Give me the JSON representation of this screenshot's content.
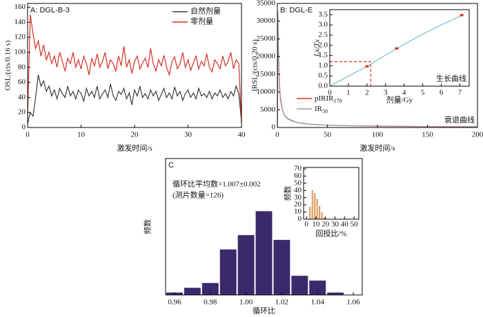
{
  "chart_data": [
    {
      "type": "line",
      "title": "A: DGL-B-3",
      "xlabel": "激发时间/s",
      "ylabel": "OSL/(cts/0.16 s)",
      "xlim": [
        0,
        40
      ],
      "ylim": [
        0,
        165
      ],
      "xticks": [
        0,
        10,
        20,
        30,
        40
      ],
      "yticks": [
        0,
        20,
        40,
        60,
        80,
        100,
        120,
        140,
        160
      ],
      "legend": "upper right",
      "x": [
        0,
        0.5,
        1,
        1.5,
        2,
        2.5,
        3,
        3.5,
        4,
        4.5,
        5,
        5.5,
        6,
        6.5,
        7,
        7.5,
        8,
        8.5,
        9,
        9.5,
        10,
        10.5,
        11,
        11.5,
        12,
        12.5,
        13,
        13.5,
        14,
        14.5,
        15,
        15.5,
        16,
        16.5,
        17,
        17.5,
        18,
        18.5,
        19,
        19.5,
        20,
        20.5,
        21,
        21.5,
        22,
        22.5,
        23,
        23.5,
        24,
        24.5,
        25,
        25.5,
        26,
        26.5,
        27,
        27.5,
        28,
        28.5,
        29,
        29.5,
        30,
        30.5,
        31,
        31.5,
        32,
        32.5,
        33,
        33.5,
        34,
        34.5,
        35,
        35.5,
        36,
        36.5,
        37,
        37.5,
        38,
        38.5,
        39,
        39.5,
        40
      ],
      "series": [
        {
          "name": "自然剂量",
          "color": "#3a3a3a",
          "values": [
            5,
            20,
            15,
            40,
            70,
            55,
            62,
            48,
            55,
            42,
            50,
            38,
            52,
            45,
            40,
            55,
            42,
            48,
            38,
            50,
            45,
            35,
            52,
            42,
            48,
            40,
            55,
            38,
            45,
            50,
            40,
            58,
            42,
            36,
            48,
            44,
            52,
            38,
            46,
            30,
            50,
            42,
            55,
            40,
            45,
            38,
            50,
            42,
            48,
            36,
            44,
            52,
            40,
            46,
            38,
            54,
            42,
            48,
            36,
            45,
            50,
            40,
            46,
            38,
            52,
            42,
            45,
            40,
            48,
            38,
            46,
            42,
            50,
            40,
            45,
            38,
            48,
            42,
            55,
            45,
            8
          ]
        },
        {
          "name": "零剂量",
          "color": "#d62d20",
          "values": [
            15,
            150,
            125,
            105,
            115,
            95,
            110,
            90,
            100,
            85,
            95,
            80,
            100,
            88,
            75,
            92,
            85,
            100,
            80,
            90,
            78,
            95,
            85,
            70,
            92,
            82,
            98,
            80,
            88,
            100,
            78,
            90,
            85,
            75,
            95,
            82,
            108,
            80,
            90,
            72,
            88,
            95,
            78,
            86,
            92,
            80,
            105,
            85,
            75,
            90,
            82,
            96,
            80,
            70,
            88,
            94,
            78,
            85,
            100,
            80,
            90,
            76,
            86,
            95,
            78,
            88,
            82,
            98,
            80,
            74,
            90,
            85,
            78,
            95,
            82,
            88,
            100,
            78,
            90,
            85,
            5
          ]
        }
      ]
    },
    {
      "type": "line",
      "title": "B: DGL-E",
      "xlabel": "激发时间/s",
      "ylabel": "IRSL/(cts/0.20 s)",
      "annotation": "衰退曲线",
      "xlim": [
        0,
        200
      ],
      "ylim": [
        0,
        35000
      ],
      "xticks": [
        0,
        50,
        100,
        150,
        200
      ],
      "yticks": [
        0,
        5000,
        10000,
        15000,
        20000,
        25000,
        30000,
        35000
      ],
      "legend": "lower left",
      "x": [
        0,
        0.5,
        1,
        2,
        3,
        5,
        7,
        10,
        15,
        20,
        30,
        40,
        50,
        70,
        100,
        130,
        160,
        200
      ],
      "series": [
        {
          "name": "pIRIR170",
          "color": "#d62d20",
          "values": [
            0,
            31000,
            22000,
            12000,
            8000,
            5000,
            3500,
            2500,
            1800,
            1400,
            1000,
            800,
            650,
            500,
            380,
            300,
            250,
            200
          ]
        },
        {
          "name": "IR50",
          "color": "#999999",
          "values": [
            0,
            33000,
            24000,
            13000,
            8500,
            5200,
            3600,
            2600,
            1900,
            1400,
            1000,
            800,
            650,
            500,
            400,
            320,
            260,
            210
          ]
        }
      ]
    },
    {
      "type": "scatter",
      "xlabel": "剂量/Gy",
      "ylabel": "Lx/Tx",
      "annotation": "生长曲线",
      "xlim": [
        0,
        7.5
      ],
      "ylim": [
        0,
        3.75
      ],
      "xticks": [
        0,
        1,
        2,
        3,
        4,
        5,
        6,
        7
      ],
      "yticks": [
        {
          "value": 0,
          "label": "0.0"
        },
        0.5,
        {
          "value": 1,
          "label": "1.0"
        },
        1.5,
        {
          "value": 2,
          "label": "2.0"
        },
        2.5,
        {
          "value": 3,
          "label": "3.0"
        },
        3.5
      ],
      "x": [
        2,
        3.6,
        7.1
      ],
      "y": [
        0.97,
        1.85,
        3.48
      ],
      "errors": [
        0.03,
        0.04,
        0.06
      ],
      "color": "#d62d20",
      "fit": {
        "color": "#7cc6d6",
        "x": [
          0,
          1,
          2,
          3,
          4,
          5,
          6,
          7,
          7.2
        ],
        "y": [
          0,
          0.49,
          0.97,
          1.52,
          2.05,
          2.55,
          3.0,
          3.43,
          3.52
        ]
      },
      "marker": {
        "x": 2.2,
        "y": 1.2,
        "color": "#d62d20"
      }
    },
    {
      "type": "histogram",
      "title": "C",
      "xlabel": "循环比",
      "ylabel": "频数",
      "annotations": [
        "循环比平均数=1.007±0.002",
        "(测片数量=126)"
      ],
      "xlim": [
        0.955,
        1.065
      ],
      "ylim": [
        0,
        57
      ],
      "xticks": [
        0.96,
        0.98,
        {
          "value": 1,
          "label": "1.00"
        },
        1.02,
        1.04,
        1.06
      ],
      "bins": [
        0.955,
        0.965,
        0.975,
        0.985,
        0.995,
        1.005,
        1.015,
        1.025,
        1.035,
        1.045,
        1.055,
        1.065
      ],
      "counts": [
        1,
        3,
        5,
        19,
        25,
        35,
        23,
        8,
        6,
        1,
        0
      ],
      "color": "#3b2a6b"
    },
    {
      "type": "histogram",
      "xlabel": "回授比/%",
      "ylabel": "频数",
      "xlim": [
        -3,
        55
      ],
      "ylim": [
        0,
        72
      ],
      "xticks": [
        0,
        10,
        20,
        30,
        40,
        50
      ],
      "yticks": [
        0,
        10,
        20,
        30,
        40,
        50,
        60,
        70
      ],
      "bins": [
        2.5,
        5,
        7.5,
        10,
        12.5,
        15,
        17.5,
        20
      ],
      "counts": [
        17,
        40,
        36,
        28,
        18,
        9,
        2
      ],
      "color": "#f6c08a"
    }
  ]
}
